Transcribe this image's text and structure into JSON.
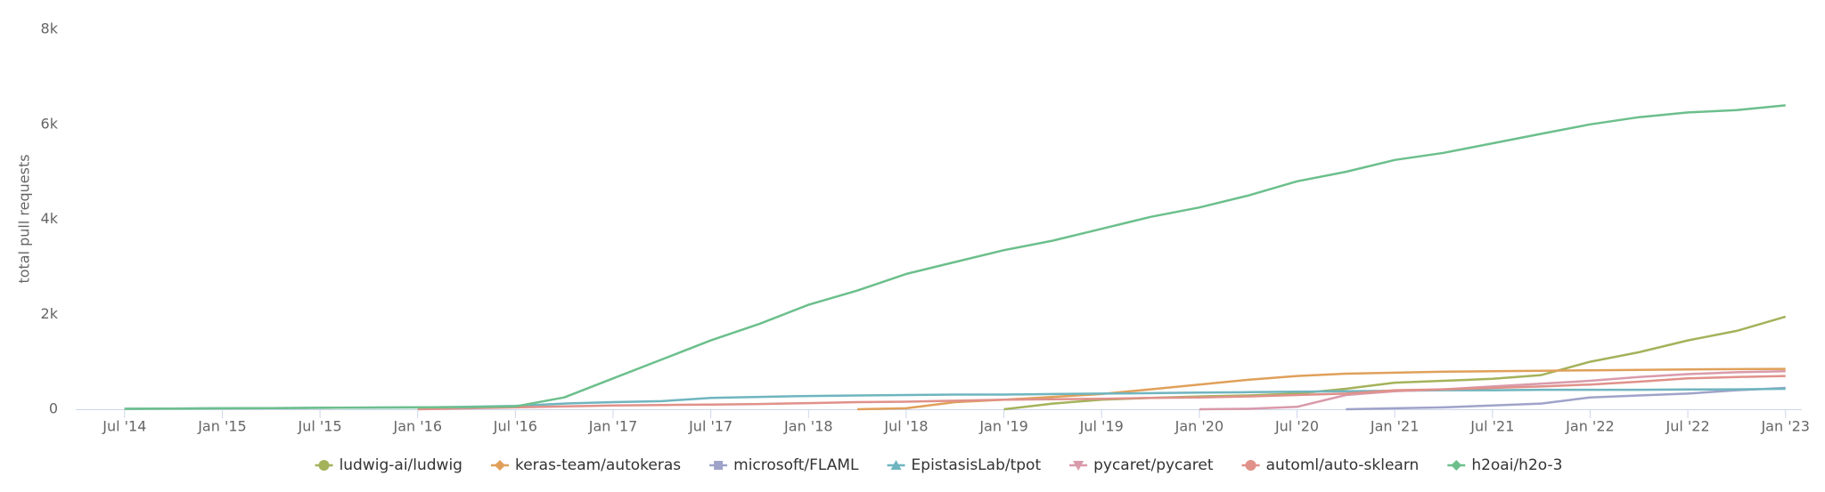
{
  "chart_data": {
    "type": "line",
    "y_label": "total pull requests",
    "x": [
      "2014-07",
      "2014-10",
      "2015-01",
      "2015-04",
      "2015-07",
      "2015-10",
      "2016-01",
      "2016-04",
      "2016-07",
      "2016-10",
      "2017-01",
      "2017-04",
      "2017-07",
      "2017-10",
      "2018-01",
      "2018-04",
      "2018-07",
      "2018-10",
      "2019-01",
      "2019-04",
      "2019-07",
      "2019-10",
      "2020-01",
      "2020-04",
      "2020-07",
      "2020-10",
      "2021-01",
      "2021-04",
      "2021-07",
      "2021-10",
      "2022-01",
      "2022-04",
      "2022-07",
      "2022-10",
      "2023-01"
    ],
    "xlim": [
      "2014-04",
      "2023-02"
    ],
    "xticks": [
      {
        "value": "2014-07",
        "label": "Jul '14"
      },
      {
        "value": "2015-01",
        "label": "Jan '15"
      },
      {
        "value": "2015-07",
        "label": "Jul '15"
      },
      {
        "value": "2016-01",
        "label": "Jan '16"
      },
      {
        "value": "2016-07",
        "label": "Jul '16"
      },
      {
        "value": "2017-01",
        "label": "Jan '17"
      },
      {
        "value": "2017-07",
        "label": "Jul '17"
      },
      {
        "value": "2018-01",
        "label": "Jan '18"
      },
      {
        "value": "2018-07",
        "label": "Jul '18"
      },
      {
        "value": "2019-01",
        "label": "Jan '19"
      },
      {
        "value": "2019-07",
        "label": "Jul '19"
      },
      {
        "value": "2020-01",
        "label": "Jan '20"
      },
      {
        "value": "2020-07",
        "label": "Jul '20"
      },
      {
        "value": "2021-01",
        "label": "Jan '21"
      },
      {
        "value": "2021-07",
        "label": "Jul '21"
      },
      {
        "value": "2022-01",
        "label": "Jan '22"
      },
      {
        "value": "2022-07",
        "label": "Jul '22"
      },
      {
        "value": "2023-01",
        "label": "Jan '23"
      }
    ],
    "ylim": [
      0,
      8000
    ],
    "yticks": [
      0,
      {
        "value": 2000,
        "label": "2k"
      },
      {
        "value": 4000,
        "label": "4k"
      },
      {
        "value": 6000,
        "label": "6k"
      },
      {
        "value": 8000,
        "label": "8k"
      }
    ],
    "legend": "bottom",
    "series": [
      {
        "name": "ludwig-ai/ludwig",
        "color": "#a4b25a",
        "values": [
          null,
          null,
          null,
          null,
          null,
          null,
          null,
          null,
          null,
          null,
          null,
          null,
          null,
          null,
          null,
          null,
          null,
          null,
          0,
          120,
          200,
          240,
          270,
          290,
          330,
          430,
          560,
          600,
          640,
          720,
          1000,
          1200,
          1450,
          1650,
          1950
        ]
      },
      {
        "name": "keras-team/autokeras",
        "color": "#e0a05a",
        "values": [
          null,
          null,
          null,
          null,
          null,
          null,
          null,
          null,
          null,
          null,
          null,
          null,
          null,
          null,
          null,
          0,
          20,
          150,
          200,
          260,
          320,
          420,
          520,
          620,
          700,
          750,
          770,
          790,
          800,
          810,
          820,
          830,
          840,
          845,
          850
        ]
      },
      {
        "name": "microsoft/FLAML",
        "color": "#9fa3c9",
        "values": [
          null,
          null,
          null,
          null,
          null,
          null,
          null,
          null,
          null,
          null,
          null,
          null,
          null,
          null,
          null,
          null,
          null,
          null,
          null,
          null,
          null,
          null,
          null,
          null,
          null,
          0,
          20,
          40,
          80,
          120,
          250,
          290,
          330,
          400,
          450
        ]
      },
      {
        "name": "EpistasisLab/tpot",
        "color": "#6fb5bf",
        "values": [
          10,
          15,
          20,
          25,
          30,
          35,
          40,
          50,
          70,
          120,
          150,
          170,
          240,
          260,
          280,
          290,
          300,
          310,
          310,
          320,
          330,
          340,
          350,
          360,
          370,
          380,
          390,
          400,
          400,
          410,
          410,
          410,
          415,
          420,
          430
        ]
      },
      {
        "name": "pycaret/pycaret",
        "color": "#d99aaa",
        "values": [
          null,
          null,
          null,
          null,
          null,
          null,
          null,
          null,
          null,
          null,
          null,
          null,
          null,
          null,
          null,
          null,
          null,
          null,
          null,
          null,
          null,
          null,
          0,
          10,
          50,
          300,
          380,
          420,
          480,
          540,
          600,
          680,
          740,
          780,
          800
        ]
      },
      {
        "name": "automl/auto-sklearn",
        "color": "#e0918a",
        "values": [
          null,
          null,
          null,
          null,
          null,
          null,
          0,
          20,
          40,
          60,
          80,
          90,
          100,
          110,
          130,
          150,
          160,
          180,
          200,
          210,
          220,
          240,
          250,
          270,
          300,
          330,
          400,
          420,
          450,
          480,
          520,
          580,
          650,
          680,
          700
        ]
      },
      {
        "name": "h2oai/h2o-3",
        "color": "#6cbf8c",
        "values": [
          10,
          15,
          20,
          25,
          30,
          35,
          40,
          45,
          60,
          250,
          650,
          1050,
          1450,
          1800,
          2200,
          2500,
          2850,
          3100,
          3350,
          3550,
          3800,
          4050,
          4250,
          4500,
          4800,
          5000,
          5250,
          5400,
          5600,
          5800,
          6000,
          6150,
          6250,
          6300,
          6400
        ]
      }
    ]
  }
}
